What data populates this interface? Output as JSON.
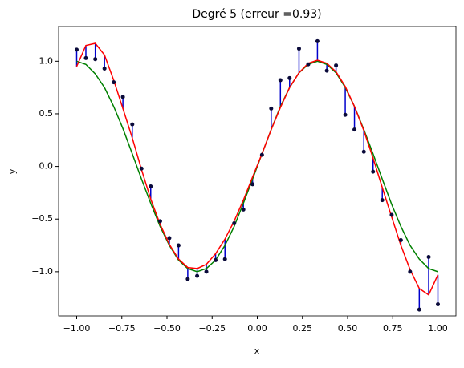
{
  "chart_data": {
    "type": "scatter-fit",
    "title": "Degré 5 (erreur =0.93)",
    "xlabel": "x",
    "ylabel": "y",
    "x": [
      -1,
      -0.949,
      -0.897,
      -0.846,
      -0.795,
      -0.744,
      -0.692,
      -0.641,
      -0.59,
      -0.538,
      -0.487,
      -0.436,
      -0.385,
      -0.333,
      -0.282,
      -0.231,
      -0.179,
      -0.128,
      -0.077,
      -0.026,
      0.026,
      0.077,
      0.128,
      0.179,
      0.231,
      0.282,
      0.333,
      0.385,
      0.436,
      0.487,
      0.538,
      0.59,
      0.641,
      0.692,
      0.744,
      0.795,
      0.846,
      0.897,
      0.949,
      1
    ],
    "series": [
      {
        "kind": "points",
        "color": "#0a0a3a",
        "values": [
          1.11,
          1.03,
          1.02,
          0.93,
          0.8,
          0.66,
          0.4,
          -0.02,
          -0.19,
          -0.52,
          -0.68,
          -0.75,
          -1.07,
          -1.04,
          -1.0,
          -0.89,
          -0.88,
          -0.54,
          -0.41,
          -0.17,
          0.11,
          0.55,
          0.82,
          0.84,
          1.12,
          0.97,
          1.19,
          0.91,
          0.96,
          0.49,
          0.35,
          0.14,
          -0.05,
          -0.32,
          -0.46,
          -0.7,
          -1.0,
          -1.36,
          -0.86,
          -1.31
        ]
      },
      {
        "kind": "fit",
        "color": "#ff0000",
        "values": [
          0.95,
          1.15,
          1.17,
          1.06,
          0.82,
          0.55,
          0.27,
          -0.03,
          -0.31,
          -0.55,
          -0.74,
          -0.88,
          -0.96,
          -0.97,
          -0.93,
          -0.83,
          -0.69,
          -0.52,
          -0.32,
          -0.1,
          0.12,
          0.35,
          0.56,
          0.75,
          0.89,
          0.98,
          1.01,
          0.98,
          0.9,
          0.76,
          0.57,
          0.34,
          0.08,
          -0.2,
          -0.48,
          -0.75,
          -0.98,
          -1.16,
          -1.22,
          -1.03
        ]
      },
      {
        "kind": "true",
        "color": "#008000",
        "values": [
          1.0,
          0.97,
          0.88,
          0.75,
          0.57,
          0.36,
          0.12,
          -0.12,
          -0.35,
          -0.57,
          -0.75,
          -0.89,
          -0.97,
          -1.0,
          -0.97,
          -0.89,
          -0.75,
          -0.57,
          -0.35,
          -0.12,
          0.12,
          0.35,
          0.57,
          0.75,
          0.89,
          0.97,
          1.0,
          0.97,
          0.89,
          0.75,
          0.57,
          0.35,
          0.12,
          -0.12,
          -0.36,
          -0.57,
          -0.75,
          -0.88,
          -0.97,
          -1.0
        ]
      }
    ],
    "residual_color": "#0000cc",
    "xlim": [
      -1.1,
      1.1
    ],
    "ylim": [
      -1.42,
      1.33
    ],
    "xticks": [
      {
        "value": -1,
        "label": "−1.00"
      },
      {
        "value": -0.75,
        "label": "−0.75"
      },
      {
        "value": -0.5,
        "label": "−0.50"
      },
      {
        "value": -0.25,
        "label": "−0.25"
      },
      {
        "value": 0,
        "label": "0.00"
      },
      {
        "value": 0.25,
        "label": "0.25"
      },
      {
        "value": 0.5,
        "label": "0.50"
      },
      {
        "value": 0.75,
        "label": "0.75"
      },
      {
        "value": 1,
        "label": "1.00"
      }
    ],
    "yticks": [
      {
        "value": -1,
        "label": "−1.0"
      },
      {
        "value": -0.5,
        "label": "−0.5"
      },
      {
        "value": 0,
        "label": "0.0"
      },
      {
        "value": 0.5,
        "label": "0.5"
      },
      {
        "value": 1,
        "label": "1.0"
      }
    ]
  }
}
